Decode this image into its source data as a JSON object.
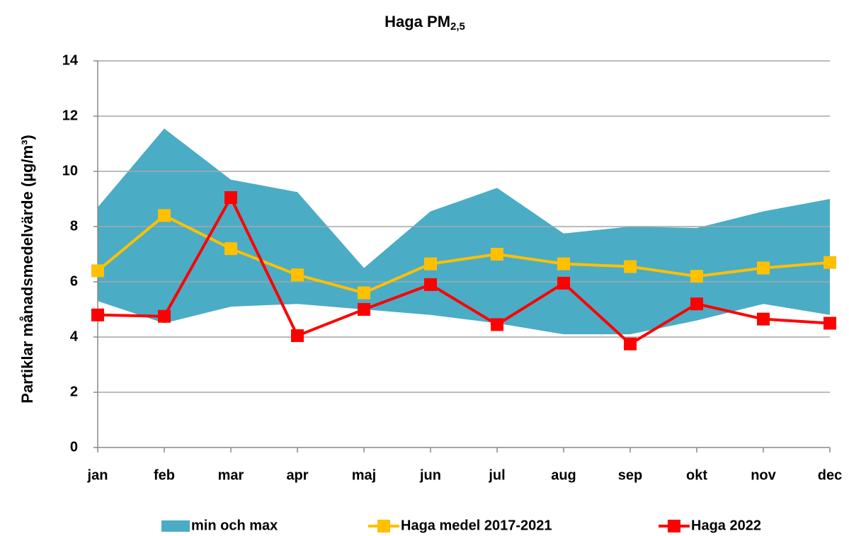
{
  "chart_data": {
    "type": "line",
    "title": "Haga PM",
    "title_subscript": "2,5",
    "y_label": "Partiklar månadsmedelvärde (µg/m³)",
    "categories": [
      "jan",
      "feb",
      "mar",
      "apr",
      "maj",
      "jun",
      "jul",
      "aug",
      "sep",
      "okt",
      "nov",
      "dec"
    ],
    "series": [
      {
        "name": "min och max",
        "type": "band",
        "color": "#4bacc6",
        "min": [
          5.3,
          4.5,
          5.1,
          5.2,
          5.0,
          4.8,
          4.5,
          4.1,
          4.1,
          4.6,
          5.2,
          4.8
        ],
        "max": [
          8.7,
          11.55,
          9.7,
          9.25,
          6.5,
          8.55,
          9.4,
          7.75,
          8.0,
          7.95,
          8.55,
          9.0
        ]
      },
      {
        "name": "Haga medel 2017-2021",
        "color": "#ffc000",
        "values": [
          6.4,
          8.4,
          7.2,
          6.25,
          5.6,
          6.65,
          7.0,
          6.65,
          6.55,
          6.2,
          6.5,
          6.7
        ]
      },
      {
        "name": "Haga 2022",
        "color": "#ff0000",
        "values": [
          4.8,
          4.75,
          9.05,
          4.05,
          5.0,
          5.9,
          4.45,
          5.95,
          3.75,
          5.2,
          4.65,
          4.5
        ]
      }
    ],
    "ylim": [
      0,
      14
    ],
    "yticks": [
      0,
      2,
      4,
      6,
      8,
      10,
      12,
      14
    ],
    "grid": true,
    "legend": "bottom"
  }
}
